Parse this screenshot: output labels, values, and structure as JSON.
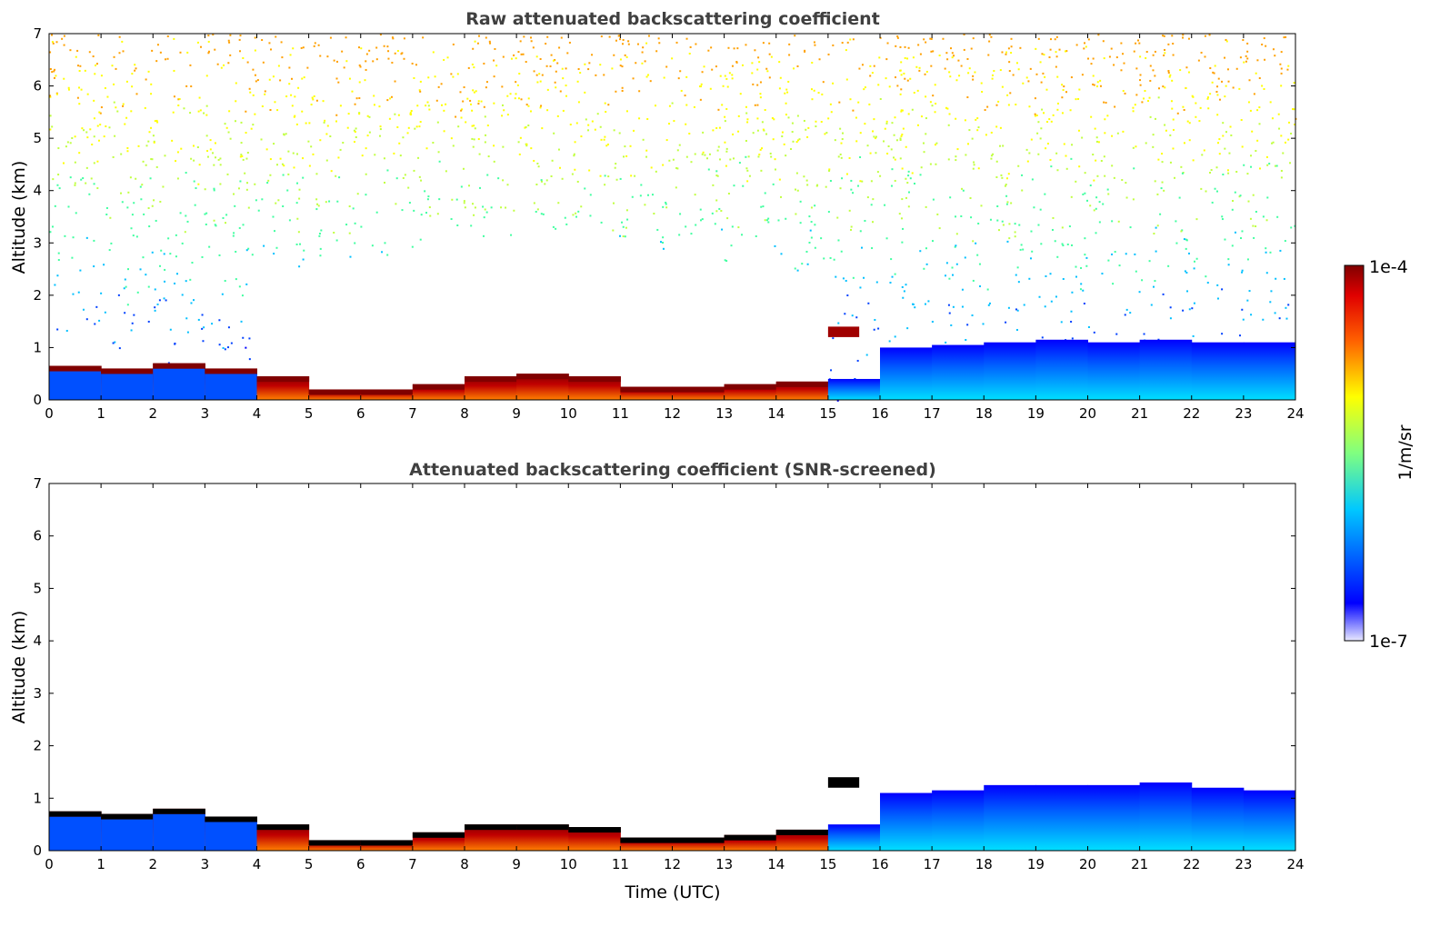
{
  "chart_data": [
    {
      "type": "heatmap",
      "title": "Raw attenuated backscattering coefficient",
      "xlabel": "",
      "ylabel": "Altitude (km)",
      "xlim": [
        0,
        24
      ],
      "ylim": [
        0,
        7
      ],
      "xticks": [
        "0",
        "1",
        "2",
        "3",
        "4",
        "5",
        "6",
        "7",
        "8",
        "9",
        "10",
        "11",
        "12",
        "13",
        "14",
        "15",
        "16",
        "17",
        "18",
        "19",
        "20",
        "21",
        "22",
        "23",
        "24"
      ],
      "yticks": [
        "0",
        "1",
        "2",
        "3",
        "4",
        "5",
        "6",
        "7"
      ],
      "layer_top_km_hourly": [
        0.65,
        0.6,
        0.7,
        0.6,
        0.45,
        0.2,
        0.2,
        0.3,
        0.45,
        0.5,
        0.45,
        0.25,
        0.25,
        0.3,
        0.35,
        0.4,
        1.0,
        1.05,
        1.1,
        1.15,
        1.1,
        1.15,
        1.1,
        1.1,
        1.05
      ],
      "noise": true
    },
    {
      "type": "heatmap",
      "title": "Attenuated backscattering coefficient (SNR-screened)",
      "xlabel": "Time (UTC)",
      "ylabel": "Altitude (km)",
      "xlim": [
        0,
        24
      ],
      "ylim": [
        0,
        7
      ],
      "xticks": [
        "0",
        "1",
        "2",
        "3",
        "4",
        "5",
        "6",
        "7",
        "8",
        "9",
        "10",
        "11",
        "12",
        "13",
        "14",
        "15",
        "16",
        "17",
        "18",
        "19",
        "20",
        "21",
        "22",
        "23",
        "24"
      ],
      "yticks": [
        "0",
        "1",
        "2",
        "3",
        "4",
        "5",
        "6",
        "7"
      ],
      "layer_top_km_hourly": [
        0.75,
        0.7,
        0.8,
        0.65,
        0.5,
        0.2,
        0.2,
        0.35,
        0.5,
        0.5,
        0.45,
        0.25,
        0.25,
        0.3,
        0.4,
        0.5,
        1.1,
        1.15,
        1.25,
        1.25,
        1.25,
        1.3,
        1.2,
        1.15,
        1.1
      ],
      "noise": false
    }
  ],
  "colorbar": {
    "min_label": "1e-7",
    "max_label": "1e-4",
    "label": "1/m/sr",
    "scale": "log",
    "colors": [
      "#e8e8ff",
      "#0000ff",
      "#00c8ff",
      "#80ff80",
      "#ffff00",
      "#ff8000",
      "#ff0000",
      "#800000"
    ]
  }
}
